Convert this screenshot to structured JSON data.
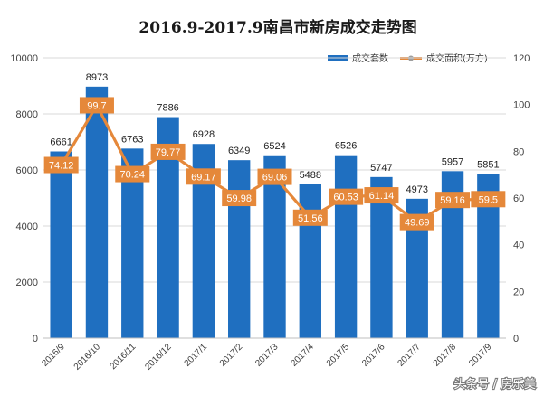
{
  "watermark": "头条号 / 房乐美",
  "colors": {
    "bar": "#1F6FC0",
    "line": "#E5883A",
    "marker": "#9E9E9E",
    "label_box": "#E5883A",
    "grid": "#D9D9D9",
    "axis_text": "#404040"
  },
  "chart_data": {
    "type": "bar",
    "title": "2016.9-2017.9南昌市新房成交走势图",
    "categories": [
      "2016/9",
      "2016/10",
      "2016/11",
      "2016/12",
      "2017/1",
      "2017/2",
      "2017/3",
      "2017/4",
      "2017/5",
      "2017/6",
      "2017/7",
      "2017/8",
      "2017/9"
    ],
    "series": [
      {
        "name": "成交套数",
        "kind": "bar",
        "axis": "left",
        "values": [
          6661,
          8973,
          6763,
          7886,
          6928,
          6349,
          6524,
          5488,
          6526,
          5747,
          4973,
          5957,
          5851
        ]
      },
      {
        "name": "成交面积(万方)",
        "kind": "line",
        "axis": "right",
        "values": [
          74.12,
          99.7,
          70.24,
          79.77,
          69.17,
          59.98,
          69.06,
          51.56,
          60.53,
          61.14,
          49.69,
          59.16,
          59.5
        ]
      }
    ],
    "y_left": {
      "min": 0,
      "max": 10000,
      "ticks": [
        0,
        2000,
        4000,
        6000,
        8000,
        10000
      ]
    },
    "y_right": {
      "min": 0,
      "max": 120,
      "ticks": [
        0,
        20,
        40,
        60,
        80,
        100,
        120
      ]
    },
    "grid": true,
    "legend_position": "top-right"
  }
}
